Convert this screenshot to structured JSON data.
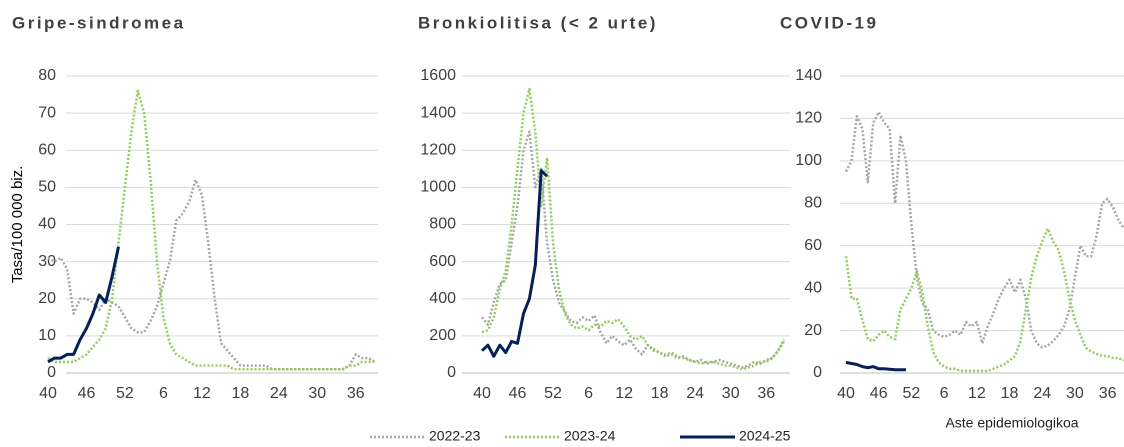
{
  "chart_data": [
    {
      "type": "line",
      "title": "Gripe-sindromea",
      "y_label": "Tasa/100 000 biz.",
      "categories": [
        "40",
        null,
        null,
        null,
        null,
        null,
        "46",
        null,
        null,
        null,
        null,
        null,
        "52",
        null,
        null,
        null,
        null,
        null,
        "6",
        null,
        null,
        null,
        null,
        null,
        "12",
        null,
        null,
        null,
        null,
        null,
        "18",
        null,
        null,
        null,
        null,
        null,
        "24",
        null,
        null,
        null,
        null,
        null,
        "30",
        null,
        null,
        null,
        null,
        null,
        "36",
        null,
        null,
        null
      ],
      "ylim": [
        0,
        80
      ],
      "yticks": [
        0,
        10,
        20,
        30,
        40,
        50,
        60,
        70,
        80
      ],
      "grid": true,
      "series": [
        {
          "name": "2022-23",
          "color": "#a6a6a6",
          "values": [
            31,
            30,
            31,
            28,
            16,
            20,
            20,
            19,
            17,
            20,
            19,
            18,
            15,
            12,
            11,
            11,
            14,
            18,
            24,
            30,
            41,
            43,
            46,
            52,
            48,
            35,
            20,
            8,
            6,
            4,
            2,
            2,
            2,
            2,
            2,
            1,
            1,
            1,
            1,
            1,
            1,
            1,
            1,
            1,
            1,
            1,
            1,
            2,
            5,
            4,
            4,
            3
          ]
        },
        {
          "name": "2023-24",
          "color": "#92d050",
          "values": [
            4,
            3,
            3,
            3,
            3,
            4,
            5,
            7,
            9,
            12,
            20,
            35,
            50,
            65,
            76,
            70,
            52,
            30,
            15,
            8,
            5,
            4,
            3,
            2,
            2,
            2,
            2,
            2,
            2,
            1,
            1,
            1,
            1,
            1,
            1,
            1,
            1,
            1,
            1,
            1,
            1,
            1,
            1,
            1,
            1,
            1,
            1,
            2,
            2,
            3,
            3,
            3
          ]
        },
        {
          "name": "2024-25",
          "color": "#002060",
          "values": [
            3,
            4,
            4,
            5,
            5,
            9,
            12,
            16,
            21,
            19,
            26,
            34,
            null,
            null,
            null,
            null,
            null,
            null,
            null,
            null,
            null,
            null,
            null,
            null,
            null,
            null,
            null,
            null,
            null,
            null,
            null,
            null,
            null,
            null,
            null,
            null,
            null,
            null,
            null,
            null,
            null,
            null,
            null,
            null,
            null,
            null,
            null,
            null,
            null,
            null,
            null,
            null
          ]
        }
      ]
    },
    {
      "type": "line",
      "title": "Bronkiolitisa (< 2 urte)",
      "categories": [
        "40",
        null,
        null,
        null,
        null,
        null,
        "46",
        null,
        null,
        null,
        null,
        null,
        "52",
        null,
        null,
        null,
        null,
        null,
        "6",
        null,
        null,
        null,
        null,
        null,
        "12",
        null,
        null,
        null,
        null,
        null,
        "18",
        null,
        null,
        null,
        null,
        null,
        "24",
        null,
        null,
        null,
        null,
        null,
        "30",
        null,
        null,
        null,
        null,
        null,
        "36",
        null,
        null,
        null
      ],
      "ylim": [
        0,
        1600
      ],
      "yticks": [
        0,
        200,
        400,
        600,
        800,
        1000,
        1200,
        1400,
        1600
      ],
      "grid": true,
      "series": [
        {
          "name": "2022-23",
          "color": "#a6a6a6",
          "values": [
            300,
            260,
            380,
            480,
            500,
            700,
            900,
            1200,
            1300,
            1000,
            1100,
            700,
            500,
            380,
            330,
            280,
            270,
            300,
            280,
            310,
            220,
            160,
            200,
            170,
            150,
            180,
            130,
            100,
            150,
            120,
            110,
            90,
            100,
            80,
            90,
            70,
            60,
            70,
            50,
            60,
            70,
            60,
            50,
            40,
            30,
            40,
            60,
            50,
            70,
            80,
            120,
            170
          ]
        },
        {
          "name": "2023-24",
          "color": "#92d050",
          "values": [
            220,
            230,
            300,
            450,
            550,
            800,
            1100,
            1400,
            1530,
            1300,
            900,
            1160,
            700,
            450,
            320,
            260,
            240,
            250,
            230,
            260,
            250,
            280,
            270,
            290,
            250,
            200,
            180,
            200,
            150,
            130,
            110,
            100,
            110,
            90,
            80,
            70,
            60,
            50,
            60,
            60,
            50,
            40,
            40,
            30,
            20,
            30,
            40,
            60,
            60,
            80,
            120,
            180
          ]
        },
        {
          "name": "2024-25",
          "color": "#002060",
          "values": [
            120,
            150,
            90,
            150,
            110,
            170,
            160,
            320,
            400,
            580,
            1090,
            1060,
            null,
            null,
            null,
            null,
            null,
            null,
            null,
            null,
            null,
            null,
            null,
            null,
            null,
            null,
            null,
            null,
            null,
            null,
            null,
            null,
            null,
            null,
            null,
            null,
            null,
            null,
            null,
            null,
            null,
            null,
            null,
            null,
            null,
            null,
            null,
            null,
            null,
            null,
            null,
            null
          ]
        }
      ]
    },
    {
      "type": "line",
      "title": "COVID-19",
      "x_label": "Aste epidemiologikoa",
      "categories": [
        "40",
        null,
        null,
        null,
        null,
        null,
        "46",
        null,
        null,
        null,
        null,
        null,
        "52",
        null,
        null,
        null,
        null,
        null,
        "6",
        null,
        null,
        null,
        null,
        null,
        "12",
        null,
        null,
        null,
        null,
        null,
        "18",
        null,
        null,
        null,
        null,
        null,
        "24",
        null,
        null,
        null,
        null,
        null,
        "30",
        null,
        null,
        null,
        null,
        null,
        "36",
        null,
        null,
        null
      ],
      "ylim": [
        0,
        140
      ],
      "yticks": [
        0,
        20,
        40,
        60,
        80,
        100,
        120,
        140
      ],
      "grid": true,
      "series": [
        {
          "name": "2022-23",
          "color": "#a6a6a6",
          "values": [
            95,
            100,
            121,
            115,
            90,
            118,
            123,
            118,
            115,
            80,
            112,
            100,
            70,
            45,
            33,
            30,
            20,
            18,
            17,
            18,
            20,
            18,
            24,
            22,
            24,
            14,
            22,
            28,
            35,
            40,
            44,
            38,
            44,
            35,
            20,
            14,
            12,
            13,
            15,
            18,
            22,
            30,
            45,
            60,
            55,
            55,
            65,
            80,
            82,
            78,
            72,
            68
          ]
        },
        {
          "name": "2023-24",
          "color": "#92d050",
          "values": [
            55,
            35,
            35,
            25,
            16,
            15,
            18,
            20,
            17,
            16,
            30,
            35,
            40,
            48,
            38,
            22,
            10,
            5,
            3,
            2,
            2,
            1,
            1,
            1,
            1,
            1,
            1,
            2,
            3,
            4,
            6,
            8,
            15,
            30,
            45,
            55,
            62,
            68,
            62,
            58,
            48,
            35,
            25,
            18,
            12,
            10,
            9,
            8,
            8,
            7,
            7,
            6
          ]
        },
        {
          "name": "2024-25",
          "color": "#002060",
          "values": [
            5,
            4.5,
            4,
            3,
            2.5,
            3,
            2,
            2,
            1.8,
            1.5,
            1.5,
            1.5,
            null,
            null,
            null,
            null,
            null,
            null,
            null,
            null,
            null,
            null,
            null,
            null,
            null,
            null,
            null,
            null,
            null,
            null,
            null,
            null,
            null,
            null,
            null,
            null,
            null,
            null,
            null,
            null,
            null,
            null,
            null,
            null,
            null,
            null,
            null,
            null,
            null,
            null,
            null,
            null
          ]
        }
      ]
    }
  ]
}
